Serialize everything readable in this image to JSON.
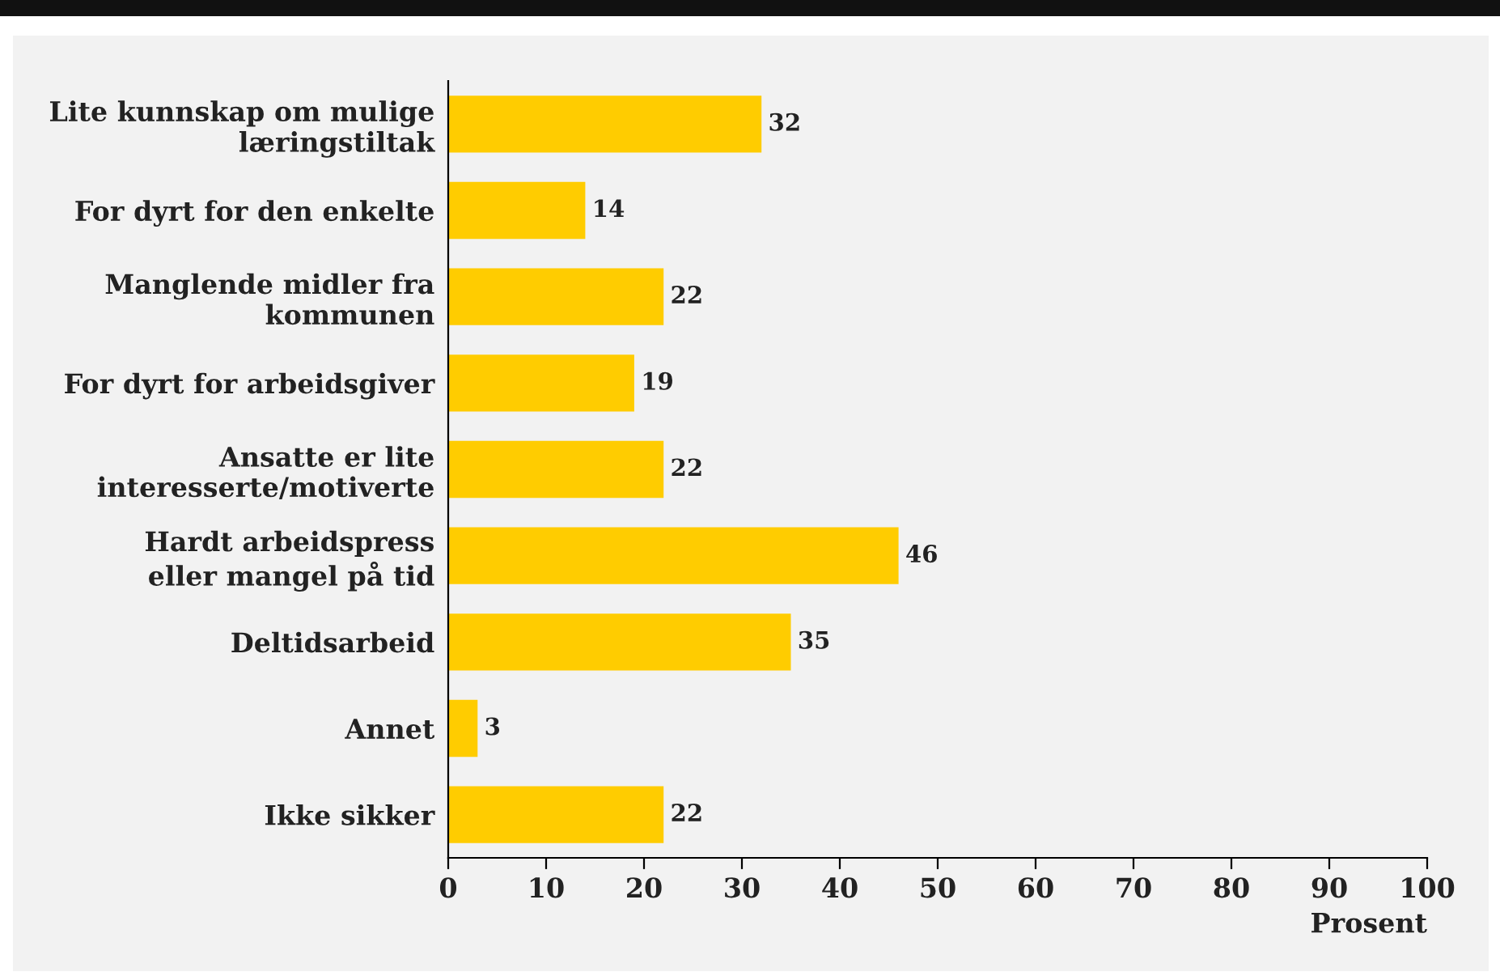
{
  "chart_data": {
    "type": "bar",
    "orientation": "horizontal",
    "categories": [
      "Lite kunnskap om mulige\nlæringstiltak",
      "For dyrt for den enkelte",
      "Manglende midler fra\nkommunen",
      "For dyrt for arbeidsgiver",
      "Ansatte er lite\ninteresserte/motiverte",
      "Hardt arbeidspress\neller mangel på tid",
      "Deltidsarbeid",
      "Annet",
      "Ikke sikker"
    ],
    "values": [
      32,
      14,
      22,
      19,
      22,
      46,
      35,
      3,
      22
    ],
    "color": "#ffcc00",
    "xlabel": "Prosent",
    "xlim": [
      0,
      100
    ],
    "xticks": [
      0,
      10,
      20,
      30,
      40,
      50,
      60,
      70,
      80,
      90,
      100
    ],
    "grid": false,
    "legend": false,
    "data_labels": true
  }
}
